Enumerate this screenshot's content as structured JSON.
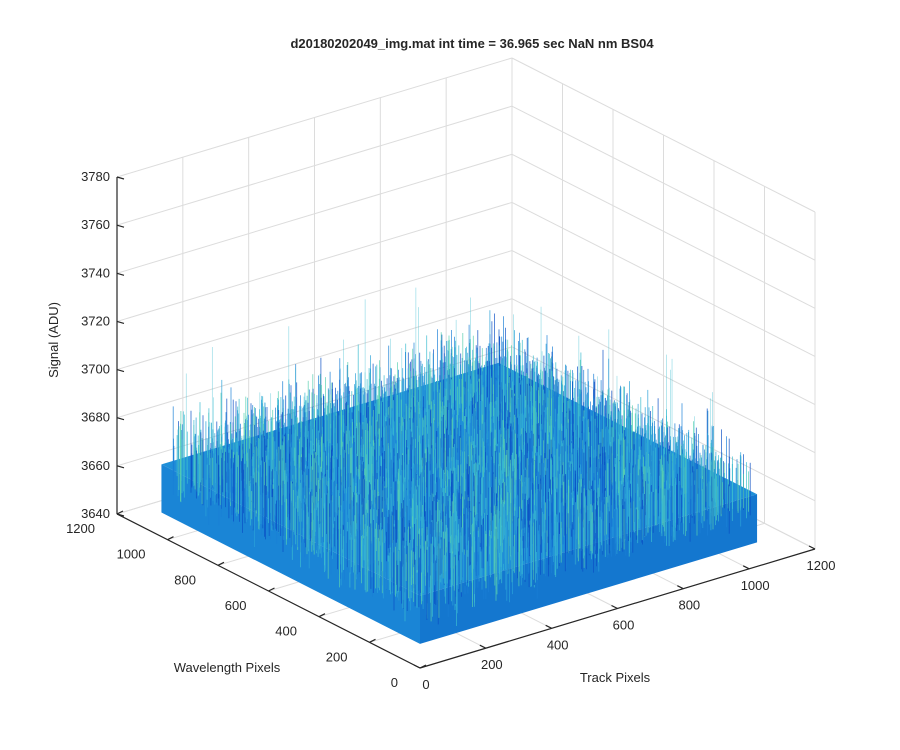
{
  "chart_data": {
    "type": "surface",
    "title": "d20180202049_img.mat int time = 36.965 sec  NaN nm BS04",
    "xlabel": "Track Pixels",
    "ylabel": "Wavelength Pixels",
    "zlabel": "Signal (ADU)",
    "xlim": [
      0,
      1200
    ],
    "ylim": [
      0,
      1200
    ],
    "zlim": [
      3640,
      3780
    ],
    "x_ticks": [
      "0",
      "200",
      "400",
      "600",
      "800",
      "1000",
      "1200"
    ],
    "y_ticks": [
      "0",
      "200",
      "400",
      "600",
      "800",
      "1000",
      "1200"
    ],
    "z_ticks": [
      "3640",
      "3660",
      "3680",
      "3700",
      "3720",
      "3740",
      "3760",
      "3780"
    ],
    "grid": true,
    "surface": {
      "x_range": [
        0,
        1024
      ],
      "y_range": [
        0,
        1024
      ],
      "mean_signal": 3670,
      "noise_min": 3650,
      "noise_max": 3720,
      "colormap": [
        "#0a4fc4",
        "#1a7fd6",
        "#2aa1d8",
        "#3bbcd0",
        "#58d0b0"
      ]
    }
  }
}
